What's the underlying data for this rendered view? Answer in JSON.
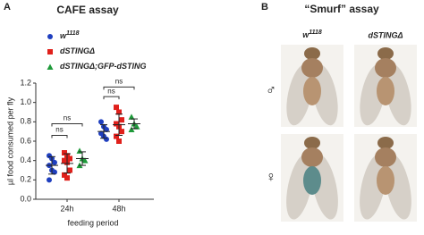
{
  "chart_data": {
    "type": "dotplot",
    "panel_label": "A",
    "title": "CAFE assay",
    "ylabel": "µl food consumed per fly",
    "xlabel": "feeding period",
    "categories": [
      "24h",
      "48h"
    ],
    "ylim": [
      0,
      1.2
    ],
    "yticks": [
      {
        "value": 0,
        "label": "0.0"
      },
      0.2,
      0.4,
      0.6,
      0.8,
      {
        "value": 1,
        "label": "1.0"
      },
      1.2
    ],
    "series": [
      {
        "name": "w",
        "name_sup": "1118",
        "color": "#1f3fbf",
        "marker": "circle",
        "values": [
          [
            0.45,
            0.42,
            0.38,
            0.35,
            0.3,
            0.28,
            0.2
          ],
          [
            0.8,
            0.75,
            0.72,
            0.68,
            0.65,
            0.62
          ]
        ],
        "mean": [
          0.35,
          0.7
        ],
        "sd": [
          0.09,
          0.07
        ]
      },
      {
        "name": "dSTINGΔ",
        "color": "#e0201b",
        "marker": "square",
        "values": [
          [
            0.48,
            0.45,
            0.42,
            0.4,
            0.38,
            0.3,
            0.25,
            0.22
          ],
          [
            0.95,
            0.9,
            0.82,
            0.78,
            0.75,
            0.7,
            0.65,
            0.6
          ]
        ],
        "mean": [
          0.37,
          0.77
        ],
        "sd": [
          0.1,
          0.11
        ]
      },
      {
        "name": "dSTINGΔ;GFP-dSTING",
        "color": "#1e9a3a",
        "marker": "triangle",
        "values": [
          [
            0.5,
            0.42,
            0.4,
            0.35
          ],
          [
            0.85,
            0.78,
            0.75,
            0.72
          ]
        ],
        "mean": [
          0.42,
          0.78
        ],
        "sd": [
          0.07,
          0.05
        ]
      }
    ],
    "annotations": [
      {
        "text": "ns",
        "category": 0,
        "from": 0,
        "to": 1,
        "y": 0.66
      },
      {
        "text": "ns",
        "category": 0,
        "from": 0,
        "to": 2,
        "y": 0.78
      },
      {
        "text": "ns",
        "category": 1,
        "from": 0,
        "to": 1,
        "y": 1.06
      },
      {
        "text": "ns",
        "category": 1,
        "from": 0,
        "to": 2,
        "y": 1.16
      }
    ]
  },
  "panel_b": {
    "label": "B",
    "title": "“Smurf” assay",
    "columns": [
      {
        "text": "w",
        "sup": "1118"
      },
      {
        "text": "dSTINGΔ"
      }
    ],
    "rows": [
      "♂",
      "♀"
    ]
  }
}
